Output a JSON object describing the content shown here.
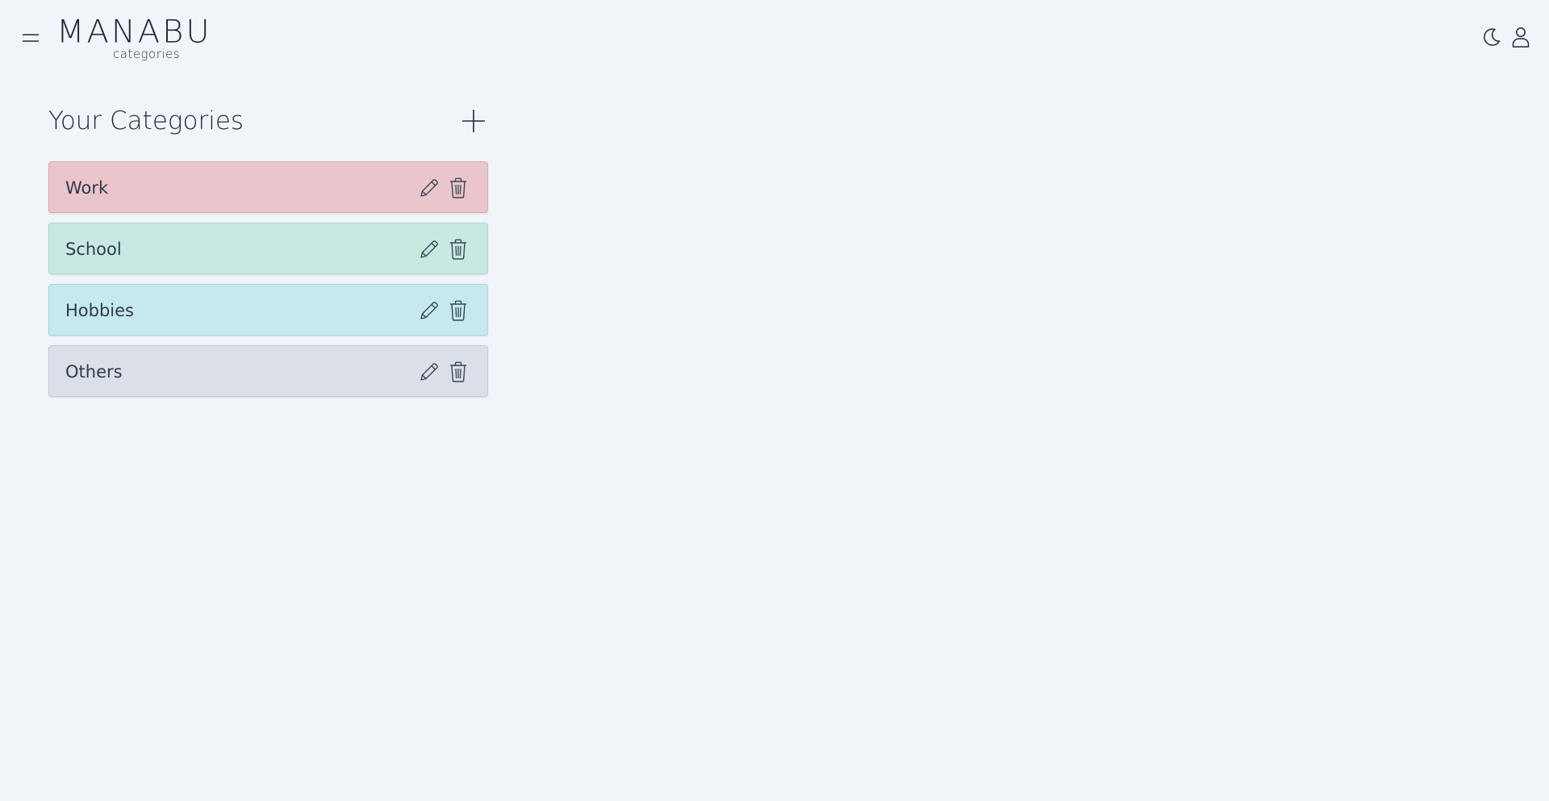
{
  "header": {
    "logo_main": "MANABU",
    "logo_sub": "categories",
    "menu_icon": "hamburger-icon",
    "theme_icon": "moon-icon",
    "user_icon": "user-icon"
  },
  "main": {
    "title": "Your Categories",
    "add_icon": "plus-icon"
  },
  "categories": [
    {
      "label": "Work",
      "color": "#eac6cc",
      "border": "#d8a6ae",
      "edit_icon": "pencil-icon",
      "delete_icon": "trash-icon"
    },
    {
      "label": "School",
      "color": "#c7e9e1",
      "border": "#a9d9cc",
      "edit_icon": "pencil-icon",
      "delete_icon": "trash-icon"
    },
    {
      "label": "Hobbies",
      "color": "#c6e8f0",
      "border": "#a6d6e2",
      "edit_icon": "pencil-icon",
      "delete_icon": "trash-icon"
    },
    {
      "label": "Others",
      "color": "#dbe0e8",
      "border": "#c3cad6",
      "edit_icon": "pencil-icon",
      "delete_icon": "trash-icon"
    }
  ],
  "colors": {
    "background": "#f1f5fa",
    "text": "#1e2a3b"
  }
}
